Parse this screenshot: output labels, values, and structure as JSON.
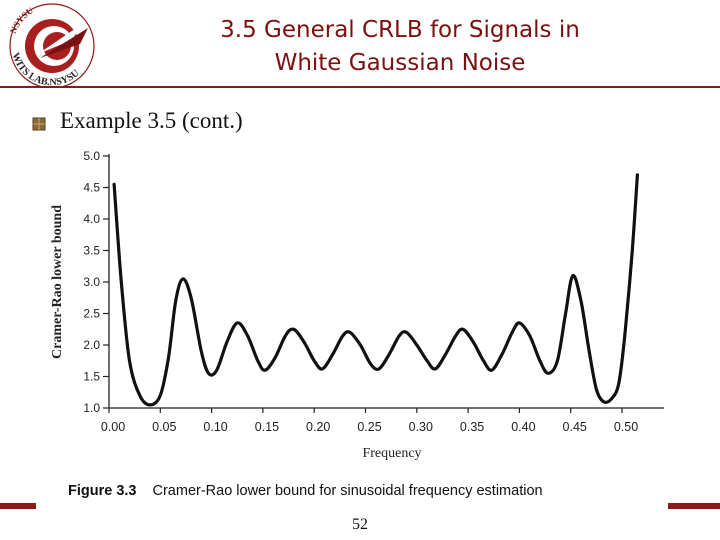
{
  "header": {
    "title_line1": "3.5 General CRLB for Signals in",
    "title_line2": "White Gaussian Noise",
    "logo_text_top": "NSYSU",
    "logo_text_bottom": "WITS LAB.NSYSU"
  },
  "body": {
    "subtitle": "Example 3.5 (cont.)",
    "bullet_icon": "square-bullet-icon"
  },
  "figure": {
    "label": "Figure 3.3",
    "caption": "Cramer-Rao lower bound for sinusoidal frequency estimation"
  },
  "footer": {
    "page_number": "52"
  },
  "colors": {
    "accent": "#8b1a1a",
    "title": "#7a1010"
  },
  "chart_data": {
    "type": "line",
    "title": "",
    "xlabel": "Frequency",
    "ylabel": "Cramer-Rao lower bound",
    "xlim": [
      0.0,
      0.5
    ],
    "ylim": [
      1.0,
      5.0
    ],
    "x_ticks": [
      "0.00",
      "0.05",
      "0.10",
      "0.15",
      "0.20",
      "0.25",
      "0.30",
      "0.35",
      "0.40",
      "0.45",
      "0.50"
    ],
    "y_ticks": [
      "1.0",
      "1.5",
      "2.0",
      "2.5",
      "3.0",
      "3.5",
      "4.0",
      "4.5",
      "5.0"
    ],
    "grid": false,
    "series": [
      {
        "values": [
          [
            0.005,
            4.55
          ],
          [
            0.012,
            3.0
          ],
          [
            0.02,
            1.75
          ],
          [
            0.03,
            1.2
          ],
          [
            0.04,
            1.05
          ],
          [
            0.05,
            1.2
          ],
          [
            0.058,
            1.8
          ],
          [
            0.065,
            2.7
          ],
          [
            0.072,
            3.05
          ],
          [
            0.08,
            2.75
          ],
          [
            0.09,
            1.9
          ],
          [
            0.097,
            1.55
          ],
          [
            0.105,
            1.6
          ],
          [
            0.115,
            2.05
          ],
          [
            0.125,
            2.35
          ],
          [
            0.135,
            2.15
          ],
          [
            0.145,
            1.75
          ],
          [
            0.152,
            1.6
          ],
          [
            0.162,
            1.8
          ],
          [
            0.172,
            2.15
          ],
          [
            0.18,
            2.25
          ],
          [
            0.19,
            2.05
          ],
          [
            0.2,
            1.75
          ],
          [
            0.208,
            1.62
          ],
          [
            0.218,
            1.85
          ],
          [
            0.228,
            2.15
          ],
          [
            0.235,
            2.2
          ],
          [
            0.245,
            2.0
          ],
          [
            0.255,
            1.7
          ],
          [
            0.263,
            1.62
          ],
          [
            0.273,
            1.85
          ],
          [
            0.283,
            2.15
          ],
          [
            0.29,
            2.2
          ],
          [
            0.3,
            2.0
          ],
          [
            0.31,
            1.75
          ],
          [
            0.318,
            1.62
          ],
          [
            0.328,
            1.85
          ],
          [
            0.338,
            2.15
          ],
          [
            0.345,
            2.25
          ],
          [
            0.355,
            2.05
          ],
          [
            0.365,
            1.75
          ],
          [
            0.373,
            1.6
          ],
          [
            0.383,
            1.85
          ],
          [
            0.393,
            2.2
          ],
          [
            0.4,
            2.35
          ],
          [
            0.41,
            2.15
          ],
          [
            0.42,
            1.75
          ],
          [
            0.428,
            1.55
          ],
          [
            0.437,
            1.75
          ],
          [
            0.445,
            2.5
          ],
          [
            0.452,
            3.1
          ],
          [
            0.46,
            2.7
          ],
          [
            0.468,
            1.9
          ],
          [
            0.475,
            1.3
          ],
          [
            0.482,
            1.1
          ],
          [
            0.49,
            1.15
          ],
          [
            0.497,
            1.4
          ],
          [
            0.503,
            2.2
          ],
          [
            0.51,
            3.5
          ],
          [
            0.515,
            4.7
          ]
        ]
      }
    ]
  }
}
